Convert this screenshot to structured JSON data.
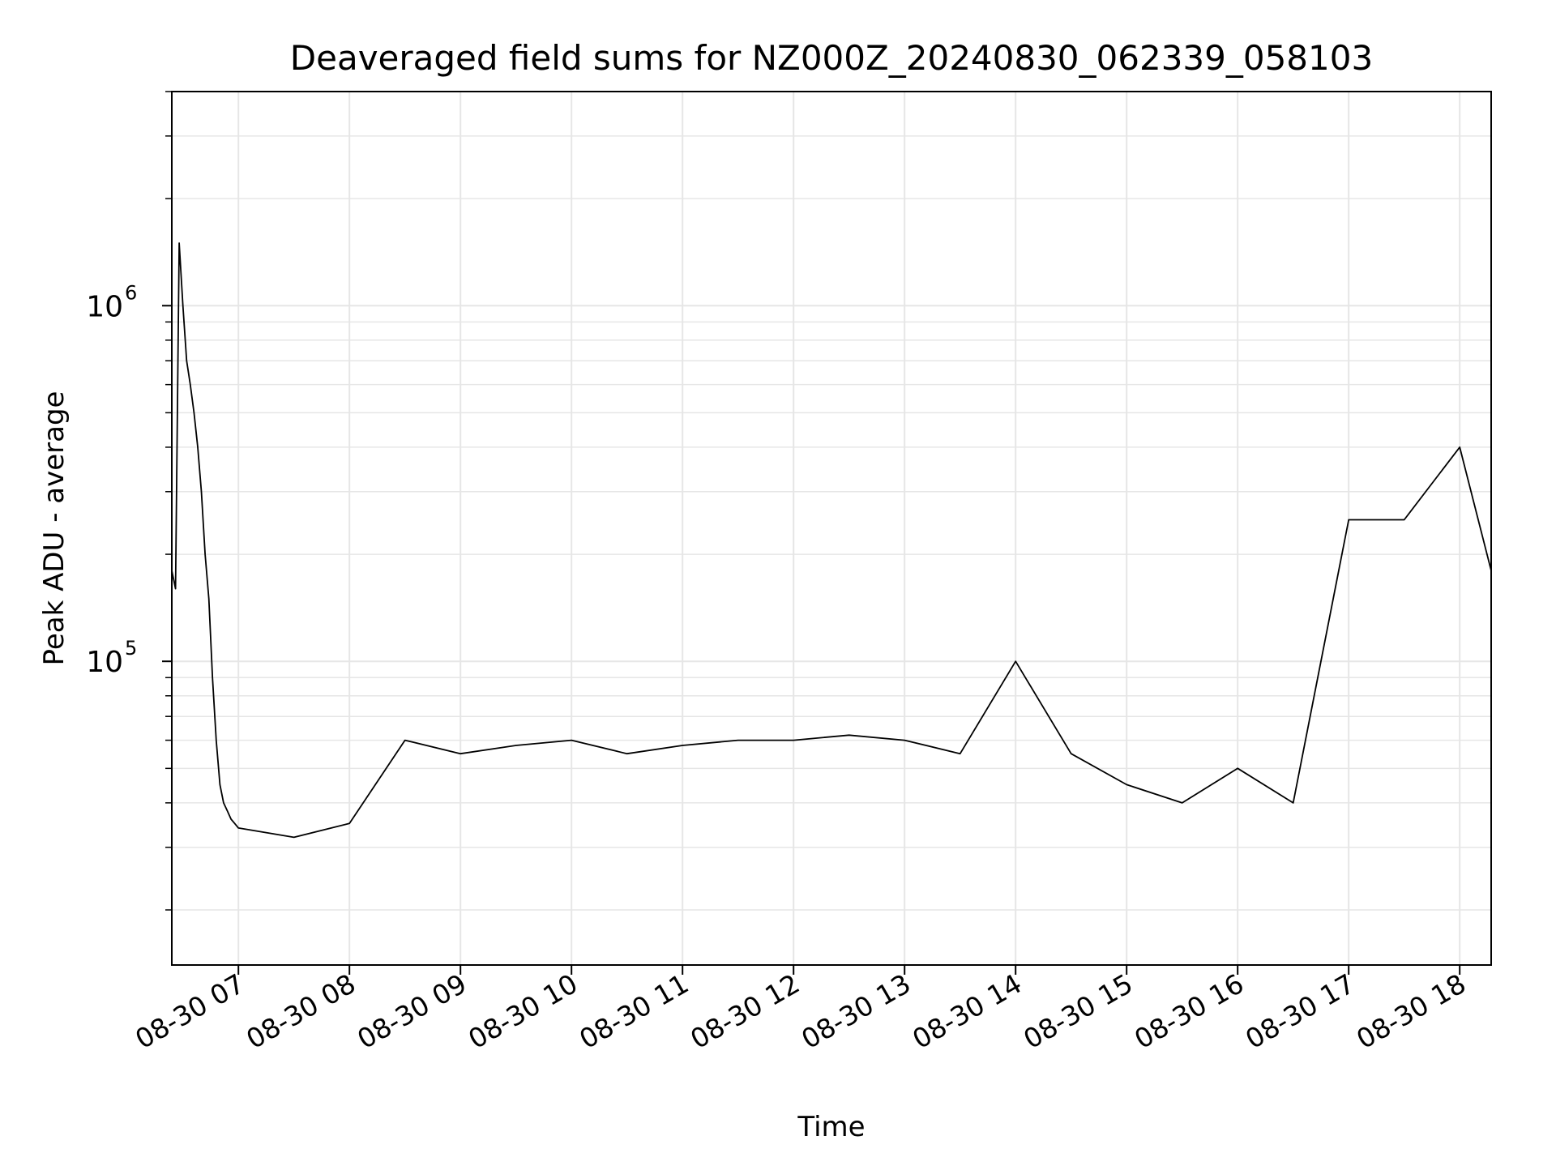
{
  "chart_data": {
    "type": "line",
    "title": "Deaveraged field sums for NZ000Z_20240830_062339_058103",
    "xlabel": "Time",
    "ylabel": "Peak ADU - average",
    "x_tick_labels": [
      "08-30 07",
      "08-30 08",
      "08-30 09",
      "08-30 10",
      "08-30 11",
      "08-30 12",
      "08-30 13",
      "08-30 14",
      "08-30 15",
      "08-30 16",
      "08-30 17",
      "08-30 18"
    ],
    "y_tick_labels": [
      {
        "base": "10",
        "exponent": "5"
      },
      {
        "base": "10",
        "exponent": "6"
      }
    ],
    "y_scale": "log",
    "xlim": [
      "2024-08-30 06:24",
      "2024-08-30 18:17"
    ],
    "ylim": [
      14000,
      4000000
    ],
    "grid": true,
    "line_color": "#000000",
    "series": [
      {
        "x": [
          "2024-08-30 06:24",
          "2024-08-30 06:26",
          "2024-08-30 06:28",
          "2024-08-30 06:30",
          "2024-08-30 06:32",
          "2024-08-30 06:34",
          "2024-08-30 06:36",
          "2024-08-30 06:38",
          "2024-08-30 06:40",
          "2024-08-30 06:42",
          "2024-08-30 06:44",
          "2024-08-30 06:46",
          "2024-08-30 06:48",
          "2024-08-30 06:50",
          "2024-08-30 06:52",
          "2024-08-30 06:54",
          "2024-08-30 06:56",
          "2024-08-30 06:58",
          "2024-08-30 07:00",
          "2024-08-30 07:30",
          "2024-08-30 08:00",
          "2024-08-30 08:30",
          "2024-08-30 09:00",
          "2024-08-30 09:30",
          "2024-08-30 10:00",
          "2024-08-30 10:30",
          "2024-08-30 11:00",
          "2024-08-30 11:30",
          "2024-08-30 12:00",
          "2024-08-30 12:30",
          "2024-08-30 13:00",
          "2024-08-30 13:30",
          "2024-08-30 14:00",
          "2024-08-30 14:30",
          "2024-08-30 15:00",
          "2024-08-30 15:30",
          "2024-08-30 16:00",
          "2024-08-30 16:30",
          "2024-08-30 17:00",
          "2024-08-30 17:30",
          "2024-08-30 18:00",
          "2024-08-30 18:17"
        ],
        "y": [
          180000,
          160000,
          1500000,
          1000000,
          700000,
          600000,
          500000,
          400000,
          300000,
          200000,
          150000,
          90000,
          60000,
          45000,
          40000,
          38000,
          36000,
          35000,
          34000,
          32000,
          35000,
          60000,
          55000,
          58000,
          60000,
          55000,
          58000,
          60000,
          60000,
          62000,
          60000,
          55000,
          100000,
          55000,
          45000,
          40000,
          50000,
          40000,
          250000,
          250000,
          400000,
          180000
        ]
      }
    ]
  }
}
